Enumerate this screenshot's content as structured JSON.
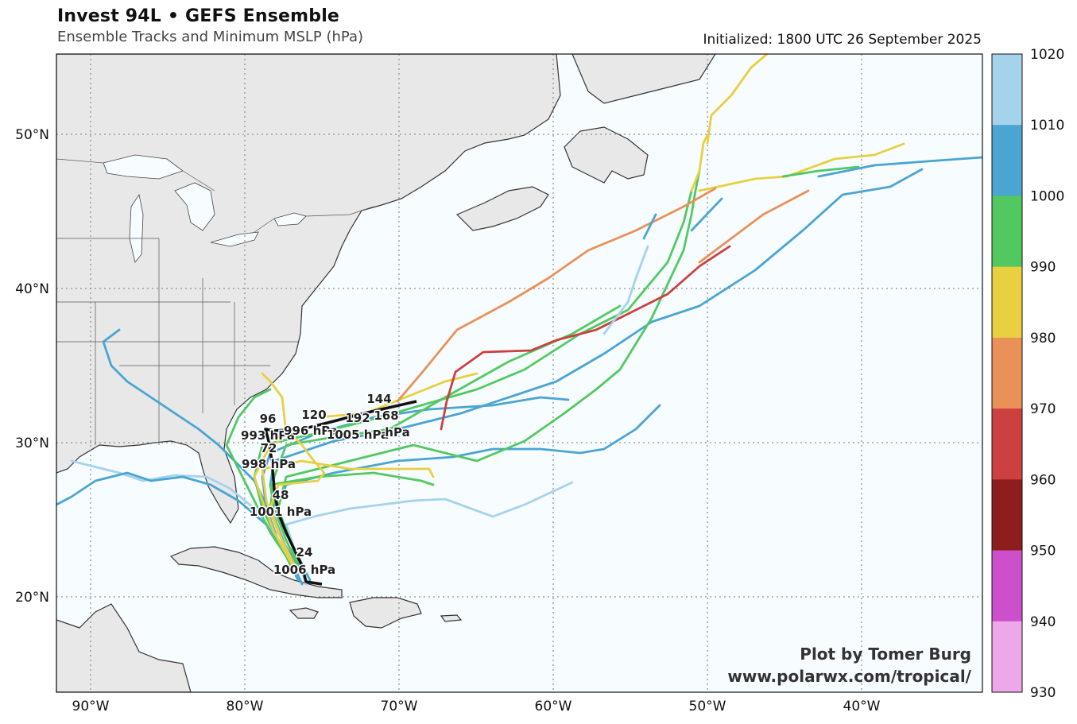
{
  "header": {
    "title": "Invest 94L • GEFS Ensemble",
    "subtitle": "Ensemble Tracks and Minimum MSLP (hPa)",
    "initialized": "Initialized: 1800 UTC 26 September 2025"
  },
  "credit": {
    "line1": "Plot by Tomer Burg",
    "line2": "www.polarwx.com/tropical/"
  },
  "axes": {
    "lat_labels": [
      "50°N",
      "40°N",
      "30°N",
      "20°N"
    ],
    "lon_labels": [
      "90°W",
      "80°W",
      "70°W",
      "60°W",
      "50°W",
      "40°W"
    ]
  },
  "colorbar": {
    "bins": [
      {
        "label": "1020",
        "color": "#a6d3ec"
      },
      {
        "label": "1010",
        "color": "#4aa5d2"
      },
      {
        "label": "1000",
        "color": "#52c960"
      },
      {
        "label": "990",
        "color": "#e8d040"
      },
      {
        "label": "980",
        "color": "#e99157"
      },
      {
        "label": "970",
        "color": "#cc4040"
      },
      {
        "label": "960",
        "color": "#8e1e1e"
      },
      {
        "label": "950",
        "color": "#cc50cc"
      },
      {
        "label": "940",
        "color": "#eca8e8"
      }
    ],
    "bottom_label": "930"
  },
  "mean_track_labels": [
    {
      "hour": "24",
      "pressure": "1006 hPa"
    },
    {
      "hour": "48",
      "pressure": "1001 hPa"
    },
    {
      "hour": "72",
      "pressure": "998 hPa"
    },
    {
      "hour": "96",
      "pressure": "993 hPa"
    },
    {
      "hour": "120",
      "pressure": "996 hPa"
    },
    {
      "hour": "144",
      "pressure": ""
    },
    {
      "hour": "168",
      "pressure": "1005 hPa"
    },
    {
      "hour": "192",
      "pressure": "hPa"
    }
  ]
}
